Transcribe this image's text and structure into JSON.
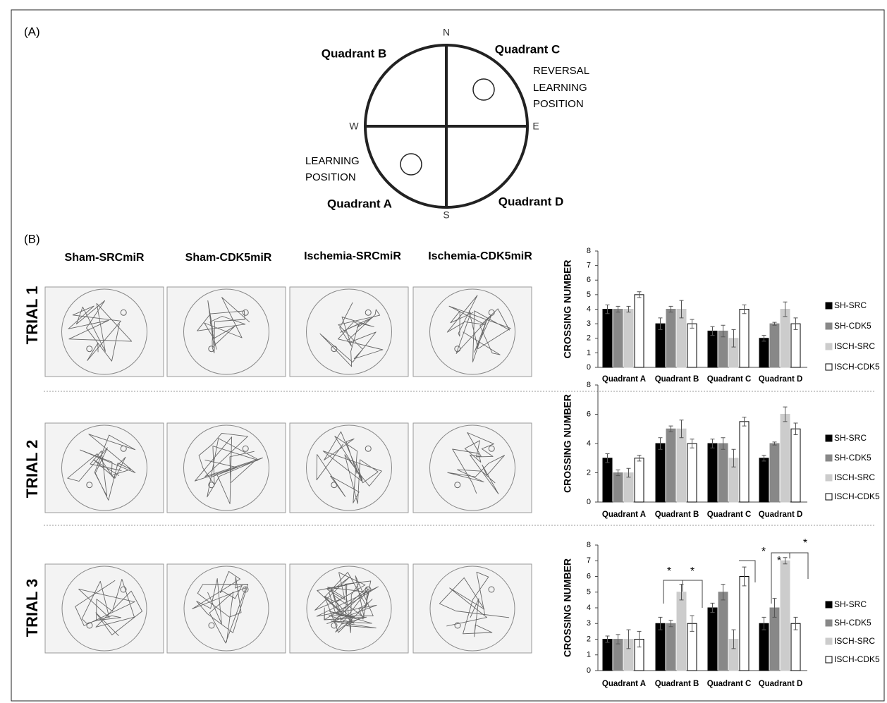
{
  "panel_a": {
    "label": "(A)",
    "compass": {
      "n": "N",
      "s": "S",
      "e": "E",
      "w": "W"
    },
    "quadrants": [
      "Quadrant A",
      "Quadrant B",
      "Quadrant C",
      "Quadrant D"
    ],
    "reversal_learning_position": [
      "REVERSAL",
      "LEARNING",
      "POSITION"
    ],
    "learning_position": [
      "LEARNING",
      "POSITION"
    ]
  },
  "panel_b": {
    "label": "(B)",
    "columns": [
      "Sham-SRCmiR",
      "Sham-CDK5miR",
      "Ischemia-SRCmiR",
      "Ischemia-CDK5miR"
    ],
    "trials": [
      "TRIAL 1",
      "TRIAL 2",
      "TRIAL 3"
    ]
  },
  "chart_data": [
    {
      "type": "bar",
      "ylabel": "CROSSING NUMBER",
      "categories": [
        "Quadrant A",
        "Quadrant B",
        "Quadrant C",
        "Quadrant D"
      ],
      "ylim": [
        0,
        8
      ],
      "yticks": [
        0,
        1,
        2,
        3,
        4,
        5,
        6,
        7,
        8
      ],
      "series": [
        {
          "name": "SH-SRC",
          "color": "#000000",
          "values": [
            4,
            3,
            2.5,
            2
          ],
          "errors": [
            0.3,
            0.4,
            0.3,
            0.2
          ]
        },
        {
          "name": "SH-CDK5",
          "color": "#888888",
          "values": [
            4,
            4,
            2.5,
            3
          ],
          "errors": [
            0.2,
            0.2,
            0.4,
            0.1
          ]
        },
        {
          "name": "ISCH-SRC",
          "color": "#cccccc",
          "values": [
            4,
            4,
            2,
            4
          ],
          "errors": [
            0.2,
            0.6,
            0.6,
            0.5
          ]
        },
        {
          "name": "ISCH-CDK5",
          "color": "#ffffff",
          "values": [
            5,
            3,
            4,
            3
          ],
          "errors": [
            0.2,
            0.3,
            0.3,
            0.4
          ]
        }
      ]
    },
    {
      "type": "bar",
      "ylabel": "CROSSING NUMBER",
      "categories": [
        "Quadrant A",
        "Quadrant B",
        "Quadrant C",
        "Quadrant D"
      ],
      "ylim": [
        0,
        8
      ],
      "yticks": [
        0,
        2,
        4,
        6,
        8
      ],
      "series": [
        {
          "name": "SH-SRC",
          "color": "#000000",
          "values": [
            3,
            4,
            4,
            3
          ],
          "errors": [
            0.3,
            0.4,
            0.3,
            0.2
          ]
        },
        {
          "name": "SH-CDK5",
          "color": "#888888",
          "values": [
            2,
            5,
            4,
            4
          ],
          "errors": [
            0.2,
            0.2,
            0.4,
            0.1
          ]
        },
        {
          "name": "ISCH-SRC",
          "color": "#cccccc",
          "values": [
            2,
            5,
            3,
            6
          ],
          "errors": [
            0.3,
            0.6,
            0.6,
            0.5
          ]
        },
        {
          "name": "ISCH-CDK5",
          "color": "#ffffff",
          "values": [
            3,
            4,
            5.5,
            5
          ],
          "errors": [
            0.2,
            0.3,
            0.3,
            0.4
          ]
        }
      ]
    },
    {
      "type": "bar",
      "ylabel": "CROSSING NUMBER",
      "categories": [
        "Quadrant A",
        "Quadrant B",
        "Quadrant C",
        "Quadrant D"
      ],
      "ylim": [
        0,
        8
      ],
      "yticks": [
        0,
        1,
        2,
        3,
        4,
        5,
        6,
        7,
        8
      ],
      "annotations": [
        "*",
        "*",
        "*",
        "*",
        "*"
      ],
      "series": [
        {
          "name": "SH-SRC",
          "color": "#000000",
          "values": [
            2,
            3,
            4,
            3
          ],
          "errors": [
            0.2,
            0.4,
            0.3,
            0.4
          ]
        },
        {
          "name": "SH-CDK5",
          "color": "#888888",
          "values": [
            2,
            3,
            5,
            4
          ],
          "errors": [
            0.3,
            0.2,
            0.5,
            0.6
          ]
        },
        {
          "name": "ISCH-SRC",
          "color": "#cccccc",
          "values": [
            2,
            5,
            2,
            7
          ],
          "errors": [
            0.6,
            0.5,
            0.6,
            0.2
          ]
        },
        {
          "name": "ISCH-CDK5",
          "color": "#ffffff",
          "values": [
            2,
            3,
            6,
            3
          ],
          "errors": [
            0.5,
            0.5,
            0.6,
            0.4
          ]
        }
      ]
    }
  ]
}
